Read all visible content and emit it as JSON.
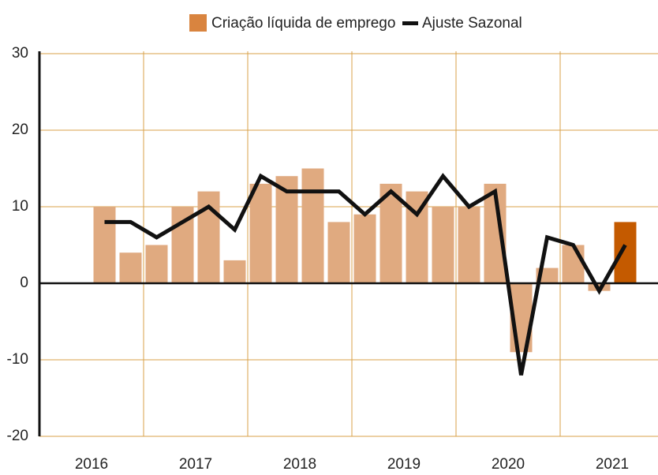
{
  "chart_data": {
    "type": "bar",
    "years": [
      "2016",
      "2017",
      "2018",
      "2019",
      "2020",
      "2021"
    ],
    "categories": [
      null,
      null,
      null,
      null,
      null,
      null,
      null,
      null,
      null,
      null,
      null,
      null,
      null,
      null,
      null,
      null,
      null,
      null,
      null,
      null,
      null
    ],
    "series": [
      {
        "name": "Criação líquida de emprego",
        "type": "bar",
        "color": "#e0aa80",
        "colors": [
          "#e0aa80",
          "#e0aa80",
          "#e0aa80",
          "#e0aa80",
          "#e0aa80",
          "#e0aa80",
          "#e0aa80",
          "#e0aa80",
          "#e0aa80",
          "#e0aa80",
          "#e0aa80",
          "#e0aa80",
          "#e0aa80",
          "#e0aa80",
          "#e0aa80",
          "#e0aa80",
          "#e0aa80",
          "#e0aa80",
          "#e0aa80",
          "#e0aa80",
          "#c45a00"
        ],
        "values": [
          10,
          4,
          5,
          10,
          12,
          3,
          13,
          14,
          15,
          8,
          9,
          13,
          12,
          10,
          10,
          13,
          -9,
          2,
          5,
          -1,
          8
        ]
      },
      {
        "name": "Ajuste Sazonal",
        "type": "line",
        "color": "#111111",
        "values": [
          8,
          8,
          6,
          8,
          10,
          7,
          14,
          12,
          12,
          12,
          9,
          12,
          9,
          14,
          10,
          12,
          -12,
          6,
          5,
          -1,
          5
        ]
      }
    ],
    "ylim": [
      -20,
      30
    ],
    "yticks": [
      -20,
      -10,
      0,
      10,
      20,
      30
    ],
    "grid": true
  }
}
